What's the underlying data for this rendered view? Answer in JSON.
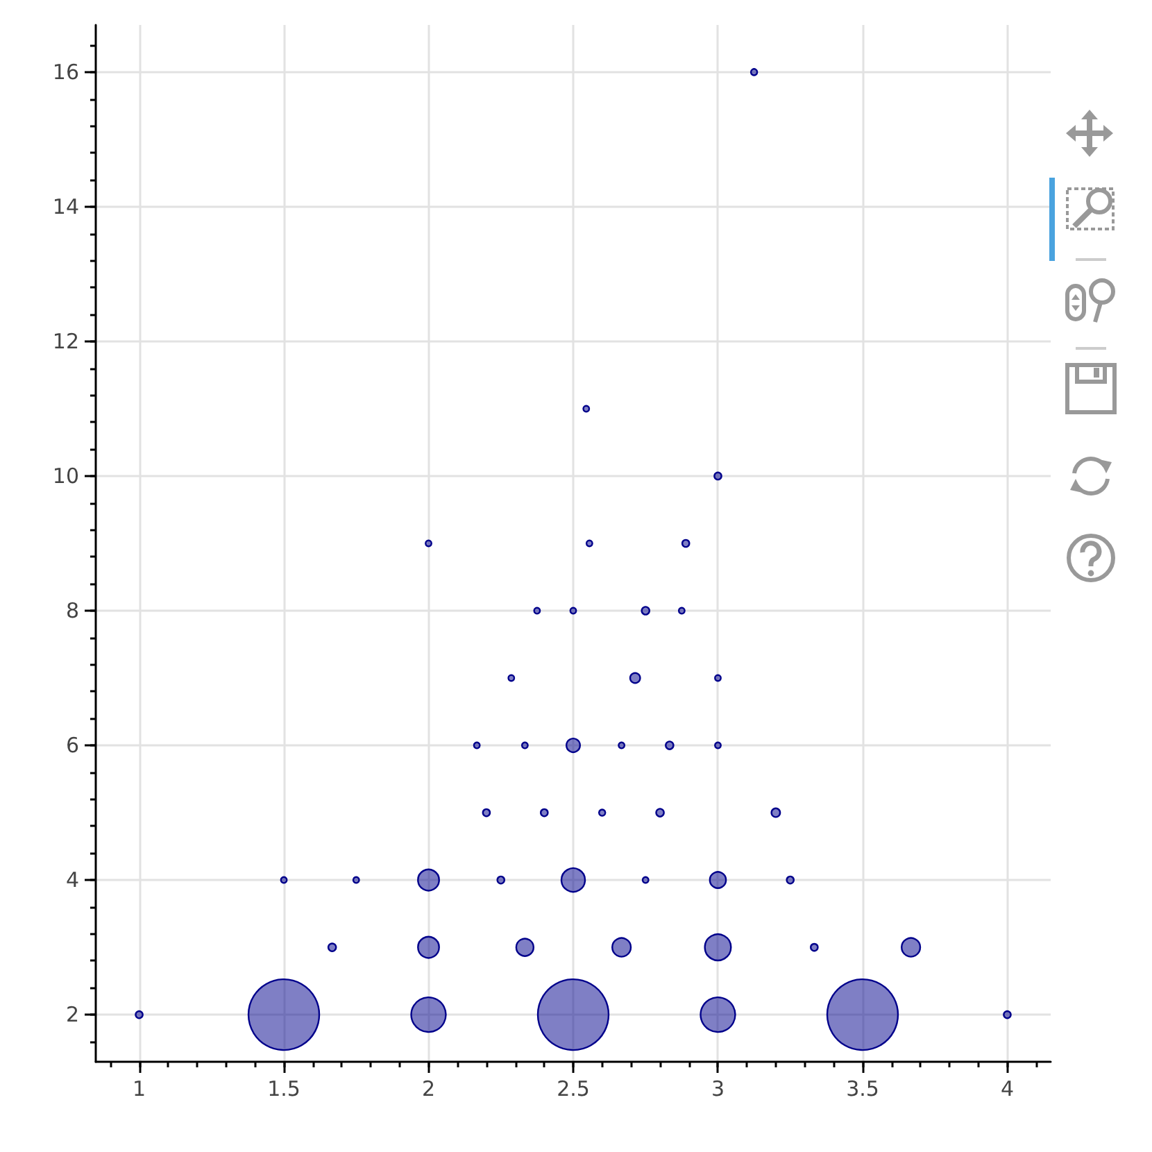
{
  "chart_data": {
    "type": "bubble",
    "marker": "circle",
    "grid": true,
    "xlim": [
      0.85,
      4.15
    ],
    "ylim": [
      1.3,
      16.7
    ],
    "xticks": [
      {
        "value": 0.9,
        "label": null
      },
      1,
      {
        "value": 1.1,
        "label": null
      },
      {
        "value": 1.2,
        "label": null
      },
      {
        "value": 1.3,
        "label": null
      },
      {
        "value": 1.4,
        "label": null
      },
      1.5,
      {
        "value": 1.6,
        "label": null
      },
      {
        "value": 1.7,
        "label": null
      },
      {
        "value": 1.8,
        "label": null
      },
      {
        "value": 1.9,
        "label": null
      },
      2,
      {
        "value": 2.1,
        "label": null
      },
      {
        "value": 2.2,
        "label": null
      },
      {
        "value": 2.3,
        "label": null
      },
      {
        "value": 2.4,
        "label": null
      },
      2.5,
      {
        "value": 2.6,
        "label": null
      },
      {
        "value": 2.7,
        "label": null
      },
      {
        "value": 2.8,
        "label": null
      },
      {
        "value": 2.9,
        "label": null
      },
      3,
      {
        "value": 3.1,
        "label": null
      },
      {
        "value": 3.2,
        "label": null
      },
      {
        "value": 3.3,
        "label": null
      },
      {
        "value": 3.4,
        "label": null
      },
      3.5,
      {
        "value": 3.6,
        "label": null
      },
      {
        "value": 3.7,
        "label": null
      },
      {
        "value": 3.8,
        "label": null
      },
      {
        "value": 3.9,
        "label": null
      },
      4,
      {
        "value": 4.1,
        "label": null
      }
    ],
    "yticks": [
      {
        "value": 1.6,
        "label": null
      },
      2,
      {
        "value": 2.4,
        "label": null
      },
      {
        "value": 2.8,
        "label": null
      },
      {
        "value": 3.2,
        "label": null
      },
      {
        "value": 3.6,
        "label": null
      },
      4,
      {
        "value": 4.4,
        "label": null
      },
      {
        "value": 4.8,
        "label": null
      },
      {
        "value": 5.2,
        "label": null
      },
      {
        "value": 5.6,
        "label": null
      },
      6,
      {
        "value": 6.4,
        "label": null
      },
      {
        "value": 6.8,
        "label": null
      },
      {
        "value": 7.2,
        "label": null
      },
      {
        "value": 7.6,
        "label": null
      },
      8,
      {
        "value": 8.4,
        "label": null
      },
      {
        "value": 8.8,
        "label": null
      },
      {
        "value": 9.2,
        "label": null
      },
      {
        "value": 9.6,
        "label": null
      },
      10,
      {
        "value": 10.4,
        "label": null
      },
      {
        "value": 10.8,
        "label": null
      },
      {
        "value": 11.2,
        "label": null
      },
      {
        "value": 11.6,
        "label": null
      },
      12,
      {
        "value": 12.4,
        "label": null
      },
      {
        "value": 12.8,
        "label": null
      },
      {
        "value": 13.2,
        "label": null
      },
      {
        "value": 13.6,
        "label": null
      },
      14,
      {
        "value": 14.4,
        "label": null
      },
      {
        "value": 14.8,
        "label": null
      },
      {
        "value": 15.2,
        "label": null
      },
      {
        "value": 15.6,
        "label": null
      },
      16,
      {
        "value": 16.4,
        "label": null
      }
    ],
    "series": [
      {
        "color": "#00008b",
        "x": [
          1,
          1.5,
          2,
          2.5,
          3,
          3.5,
          4,
          1.667,
          2,
          2.333,
          2.667,
          3,
          3.333,
          3.667,
          1.5,
          1.75,
          2,
          2.25,
          2.5,
          2.75,
          3,
          3.25,
          2.2,
          2.4,
          2.6,
          2.8,
          3.2,
          2.167,
          2.333,
          2.5,
          2.667,
          2.833,
          3,
          2.286,
          2.714,
          3,
          2.375,
          2.5,
          2.75,
          2.875,
          2,
          2.556,
          2.889,
          3,
          2.545,
          3.125
        ],
        "values": [
          2,
          2,
          2,
          2,
          2,
          2,
          2,
          3,
          3,
          3,
          3,
          3,
          3,
          3,
          4,
          4,
          4,
          4,
          4,
          4,
          4,
          4,
          5,
          5,
          5,
          5,
          5,
          6,
          6,
          6,
          6,
          6,
          6,
          7,
          7,
          7,
          8,
          8,
          8,
          8,
          9,
          9,
          9,
          10,
          11,
          16
        ],
        "sizes": [
          0.01,
          1,
          0.24,
          1,
          0.24,
          1,
          0.01,
          0.012,
          0.089,
          0.06,
          0.069,
          0.136,
          0.01,
          0.069,
          0.007,
          0.007,
          0.089,
          0.01,
          0.111,
          0.007,
          0.052,
          0.01,
          0.01,
          0.01,
          0.008,
          0.012,
          0.015,
          0.007,
          0.007,
          0.037,
          0.007,
          0.012,
          0.007,
          0.007,
          0.02,
          0.007,
          0.007,
          0.007,
          0.012,
          0.007,
          0.007,
          0.007,
          0.01,
          0.01,
          0.007,
          0.008
        ]
      }
    ]
  }
}
